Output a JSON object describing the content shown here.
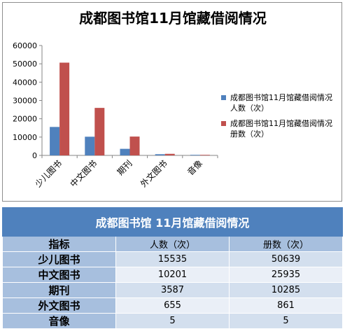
{
  "chart_data": {
    "type": "bar",
    "title": "成都图书馆11月馆藏借阅情况",
    "categories": [
      "少儿图书",
      "中文图书",
      "期刊",
      "外文图书",
      "音像"
    ],
    "series": [
      {
        "name": "成都图书馆11月馆藏借阅情况 人数（次）",
        "color": "#4f81bd",
        "values": [
          15535,
          10201,
          3587,
          655,
          5
        ]
      },
      {
        "name": "成都图书馆11月馆藏借阅情况 册数（次）",
        "color": "#c0504d",
        "values": [
          50639,
          25935,
          10285,
          861,
          5
        ]
      }
    ],
    "ylim": [
      0,
      60000
    ],
    "yticks": [
      "0",
      "10000",
      "20000",
      "30000",
      "40000",
      "50000",
      "60000"
    ],
    "grid": false,
    "legend_position": "right"
  },
  "table": {
    "title": "成都图书馆 11月馆藏借阅情况",
    "header": {
      "label": "指标",
      "col1": "人数（次）",
      "col2": "册数（次）"
    },
    "rows": [
      {
        "label": "少儿图书",
        "col1": "15535",
        "col2": "50639"
      },
      {
        "label": "中文图书",
        "col1": "10201",
        "col2": "25935"
      },
      {
        "label": "期刊",
        "col1": "3587",
        "col2": "10285"
      },
      {
        "label": "外文图书",
        "col1": "655",
        "col2": "861"
      },
      {
        "label": "音像",
        "col1": "5",
        "col2": "5"
      }
    ]
  }
}
